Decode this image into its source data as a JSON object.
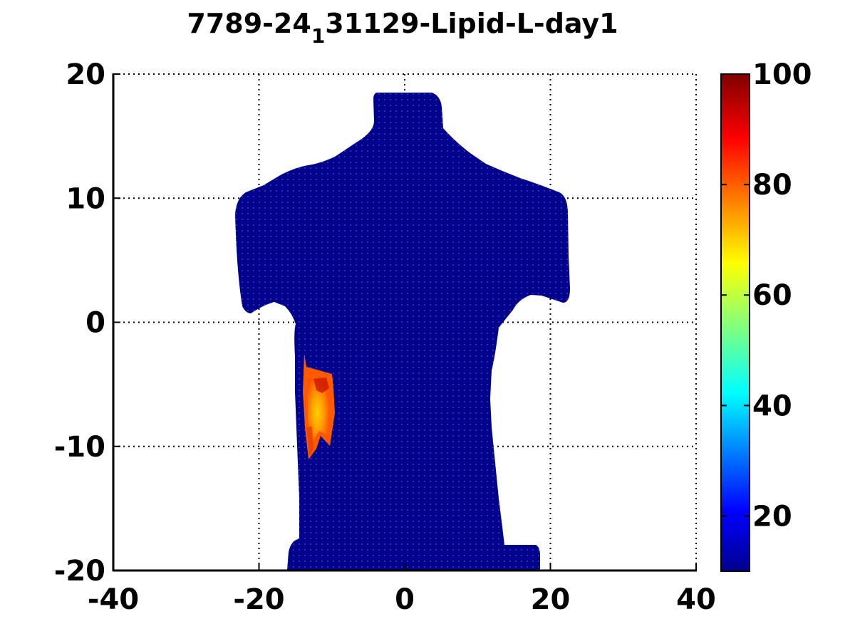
{
  "chart_data": {
    "type": "heatmap",
    "title": {
      "prefix": "7789-24",
      "subscript": "1",
      "suffix": "31129-Lipid-L-day1"
    },
    "xlabel": "",
    "ylabel": "",
    "xlim": [
      -40,
      40
    ],
    "ylim": [
      -20,
      20
    ],
    "x_ticks": [
      -40,
      -20,
      0,
      20,
      40
    ],
    "y_ticks": [
      20,
      10,
      0,
      -10,
      -20
    ],
    "grid": true,
    "colormap": "jet",
    "clim": [
      10,
      100
    ],
    "colorbar_ticks": [
      20,
      40,
      60,
      80,
      100
    ],
    "colorbar_location": "right",
    "background_value": 10,
    "region": {
      "label": "lipid signal patch",
      "x_range": [
        -13.5,
        -9.5
      ],
      "y_range": [
        -11,
        -2.5
      ],
      "value_range": [
        70,
        95
      ]
    }
  },
  "colors": {
    "torso": "#00008f",
    "patch_outer": "#ff6a00",
    "patch_inner": "#ffd200",
    "patch_hot": "#cc1a00"
  }
}
